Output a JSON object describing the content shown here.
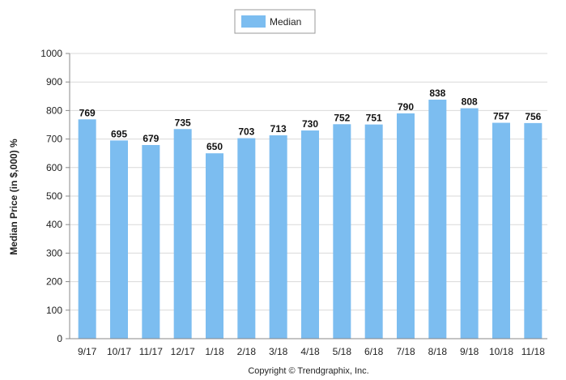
{
  "chart_data": {
    "type": "bar",
    "legend": {
      "label": "Median",
      "placement": "top-center"
    },
    "ylabel": "Median Price (in $,000) %",
    "xlabel": "",
    "ylim": [
      0,
      1000
    ],
    "yticks": [
      0,
      100,
      200,
      300,
      400,
      500,
      600,
      700,
      800,
      900,
      1000
    ],
    "grid": true,
    "categories": [
      "9/17",
      "10/17",
      "11/17",
      "12/17",
      "1/18",
      "2/18",
      "3/18",
      "4/18",
      "5/18",
      "6/18",
      "7/18",
      "8/18",
      "9/18",
      "10/18",
      "11/18"
    ],
    "series": [
      {
        "name": "Median",
        "values": [
          769,
          695,
          679,
          735,
          650,
          703,
          713,
          730,
          752,
          751,
          790,
          838,
          808,
          757,
          756
        ]
      }
    ],
    "colors": {
      "bar": "#7cbdf0",
      "grid": "#d9d9d9",
      "axis": "#888888"
    }
  },
  "footer": {
    "copyright": "Copyright © Trendgraphix, Inc."
  }
}
